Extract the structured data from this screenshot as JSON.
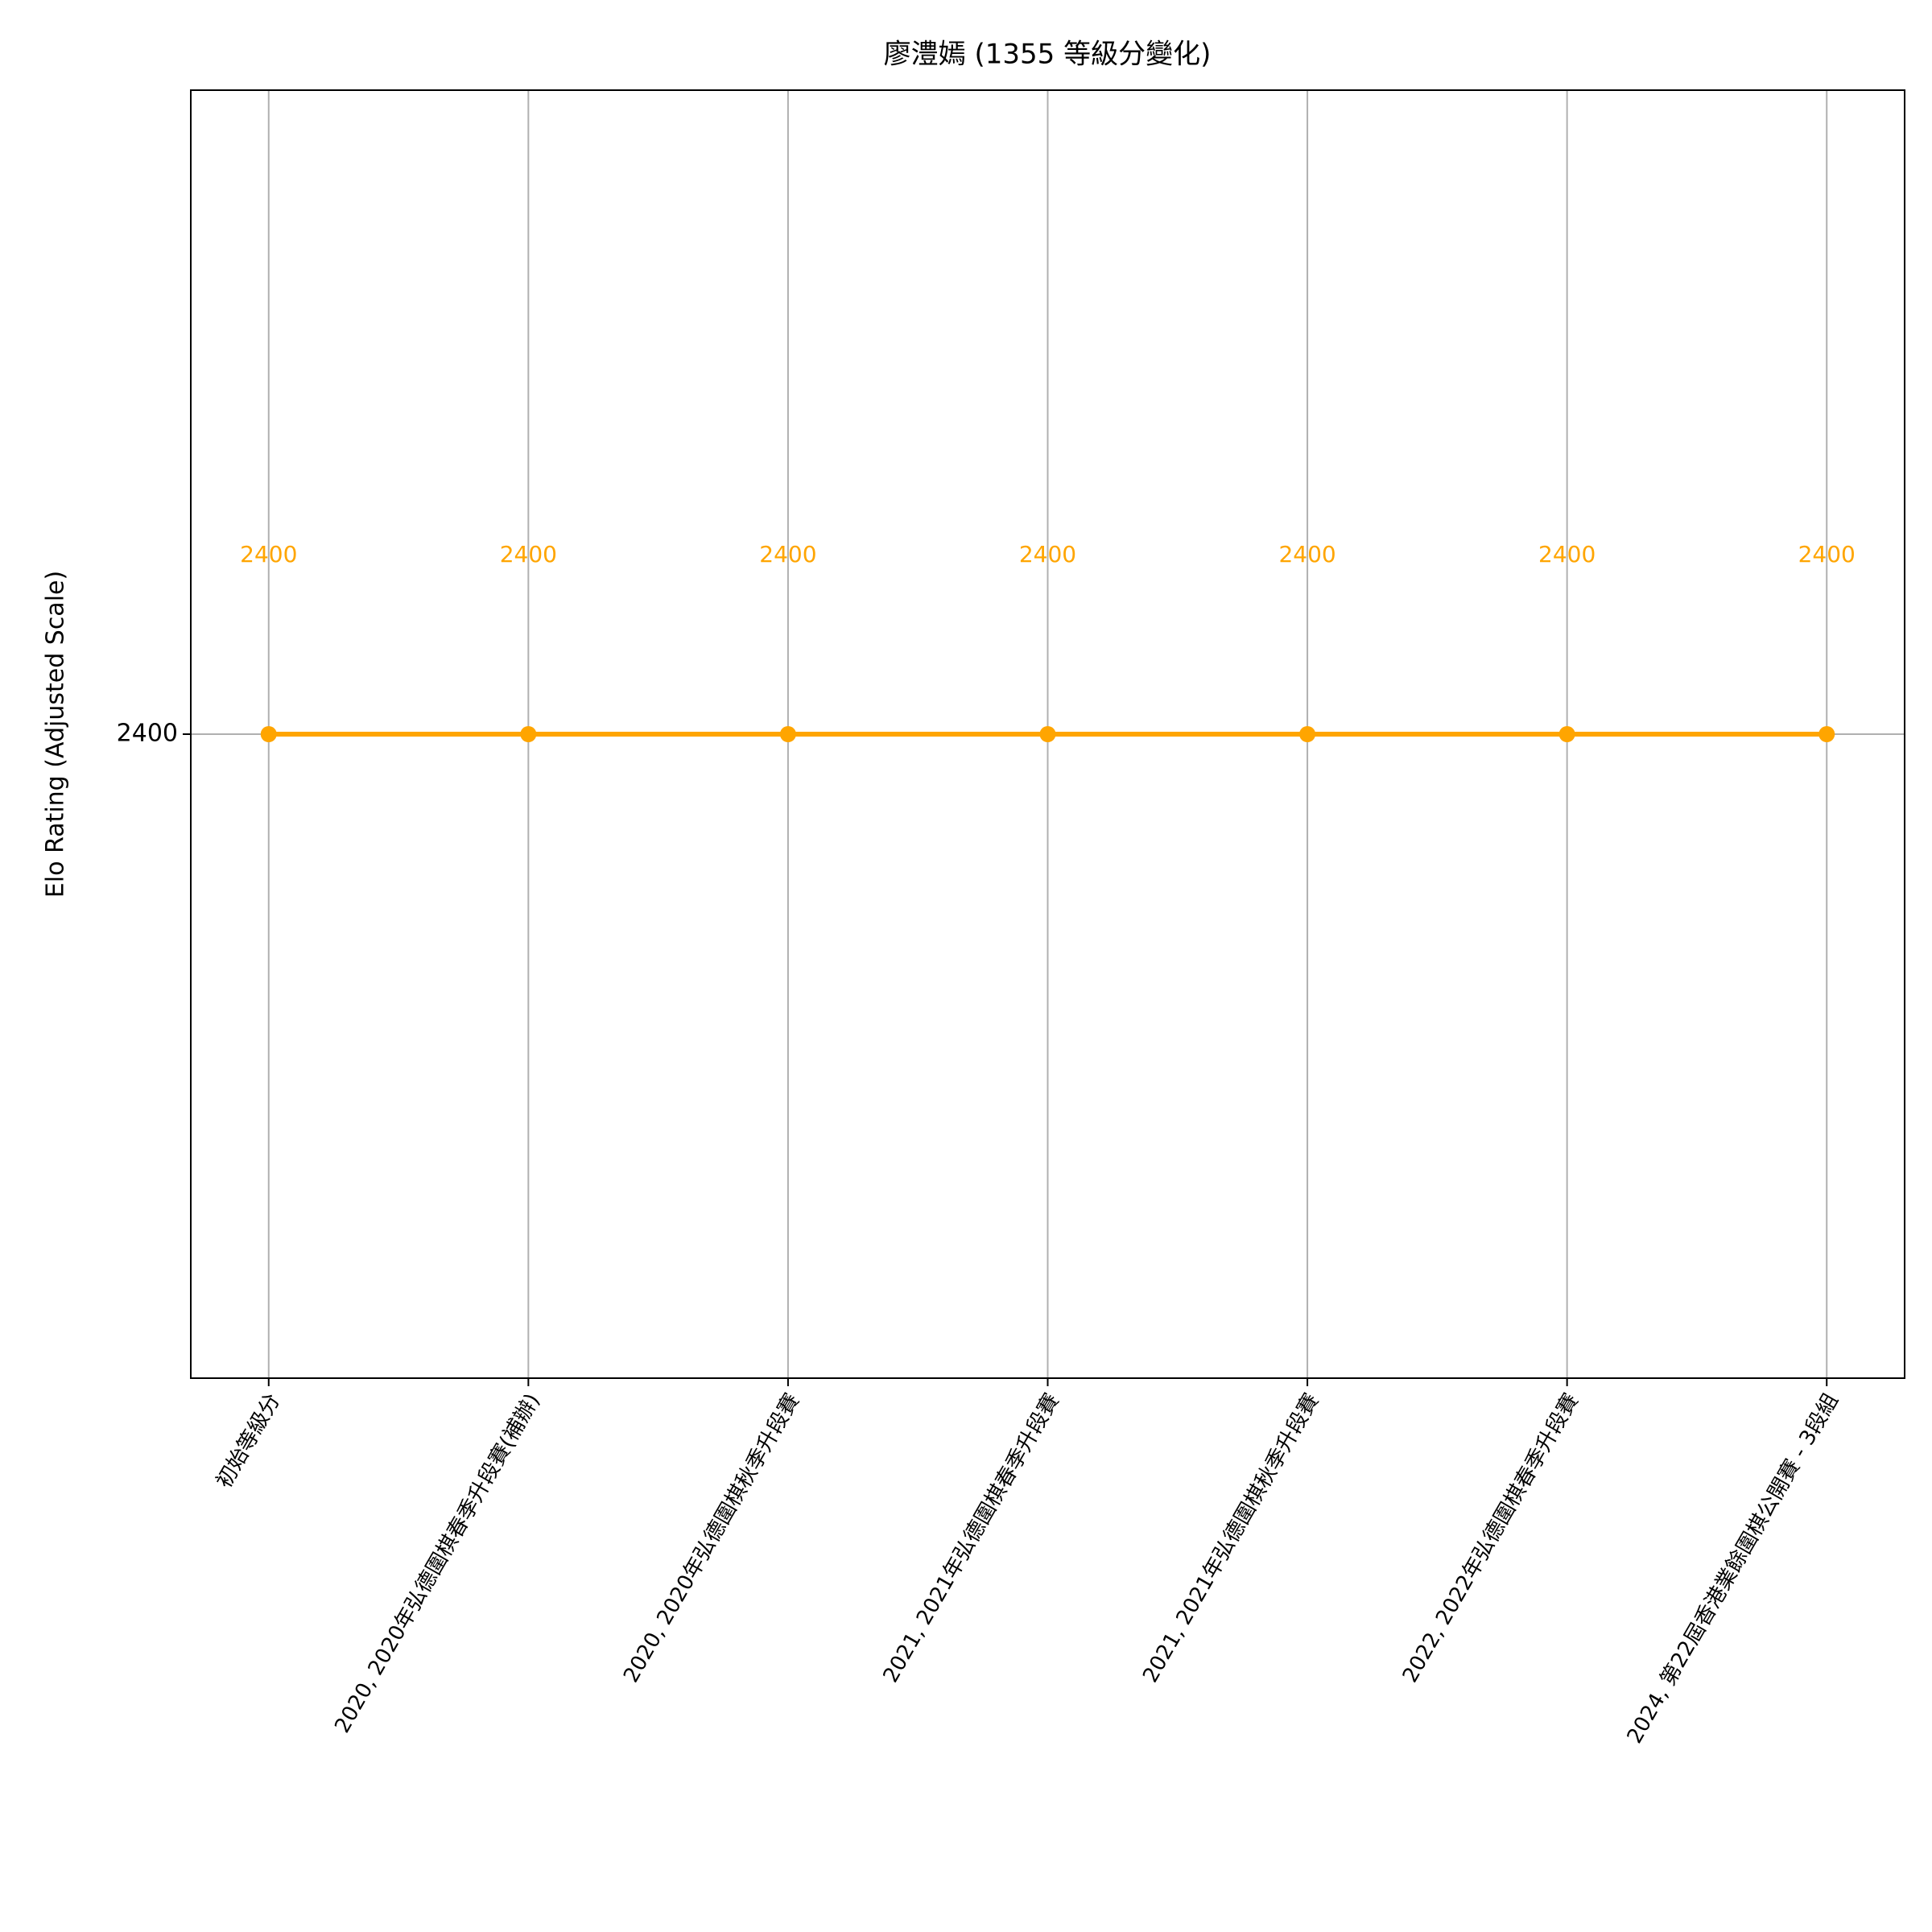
{
  "chart_data": {
    "type": "line",
    "title": "廖澧嫣 (1355 等級分變化)",
    "y_label": "Elo Rating (Adjusted Scale)",
    "categories": [
      "初始等級分",
      "2020, 2020年弘德圍棋春季升段賽(補辦)",
      "2020, 2020年弘德圍棋秋季升段賽",
      "2021, 2021年弘德圍棋春季升段賽",
      "2021, 2021年弘德圍棋秋季升段賽",
      "2022, 2022年弘德圍棋春季升段賽",
      "2024, 第22屆香港業餘圍棋公開賽 - 3段組"
    ],
    "values": [
      2400,
      2400,
      2400,
      2400,
      2400,
      2400,
      2400
    ],
    "color": "#ffa500",
    "ylim": [
      2280,
      2520
    ],
    "yticks": [
      2400
    ],
    "grid": true
  }
}
